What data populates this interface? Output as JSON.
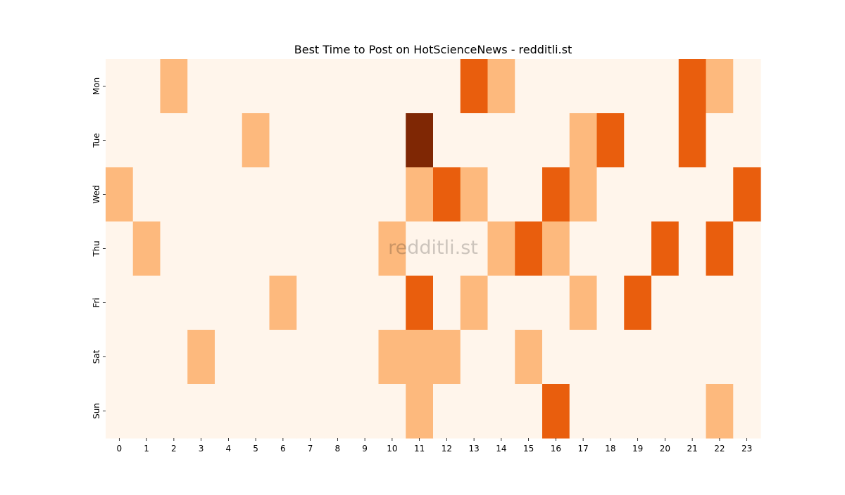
{
  "chart_data": {
    "type": "heatmap",
    "title": "Best Time to Post on HotScienceNews - redditli.st",
    "xlabel": "",
    "ylabel": "",
    "x_categories": [
      "0",
      "1",
      "2",
      "3",
      "4",
      "5",
      "6",
      "7",
      "8",
      "9",
      "10",
      "11",
      "12",
      "13",
      "14",
      "15",
      "16",
      "17",
      "18",
      "19",
      "20",
      "21",
      "22",
      "23"
    ],
    "y_categories": [
      "Mon",
      "Tue",
      "Wed",
      "Thu",
      "Fri",
      "Sat",
      "Sun"
    ],
    "colormap": "Oranges",
    "colorbar": false,
    "grid": false,
    "values": [
      [
        0,
        0,
        1,
        0,
        0,
        0,
        0,
        0,
        0,
        0,
        0,
        0,
        0,
        2,
        1,
        0,
        0,
        0,
        0,
        0,
        0,
        2,
        1,
        0
      ],
      [
        0,
        0,
        0,
        0,
        0,
        1,
        0,
        0,
        0,
        0,
        0,
        3,
        0,
        0,
        0,
        0,
        0,
        1,
        2,
        0,
        0,
        2,
        0,
        0
      ],
      [
        1,
        0,
        0,
        0,
        0,
        0,
        0,
        0,
        0,
        0,
        0,
        1,
        2,
        1,
        0,
        0,
        2,
        1,
        0,
        0,
        0,
        0,
        0,
        2
      ],
      [
        0,
        1,
        0,
        0,
        0,
        0,
        0,
        0,
        0,
        0,
        1,
        0,
        0,
        0,
        1,
        2,
        1,
        0,
        0,
        0,
        2,
        0,
        2,
        0
      ],
      [
        0,
        0,
        0,
        0,
        0,
        0,
        1,
        0,
        0,
        0,
        0,
        2,
        0,
        1,
        0,
        0,
        0,
        1,
        0,
        2,
        0,
        0,
        0,
        0
      ],
      [
        0,
        0,
        0,
        1,
        0,
        0,
        0,
        0,
        0,
        0,
        1,
        1,
        1,
        0,
        0,
        1,
        0,
        0,
        0,
        0,
        0,
        0,
        0,
        0
      ],
      [
        0,
        0,
        0,
        0,
        0,
        0,
        0,
        0,
        0,
        0,
        0,
        1,
        0,
        0,
        0,
        0,
        2,
        0,
        0,
        0,
        0,
        0,
        1,
        0
      ]
    ],
    "level_colors": [
      "#fff5eb",
      "#fdb97d",
      "#e95e0d",
      "#7f2704"
    ]
  },
  "watermark": "redditli.st"
}
